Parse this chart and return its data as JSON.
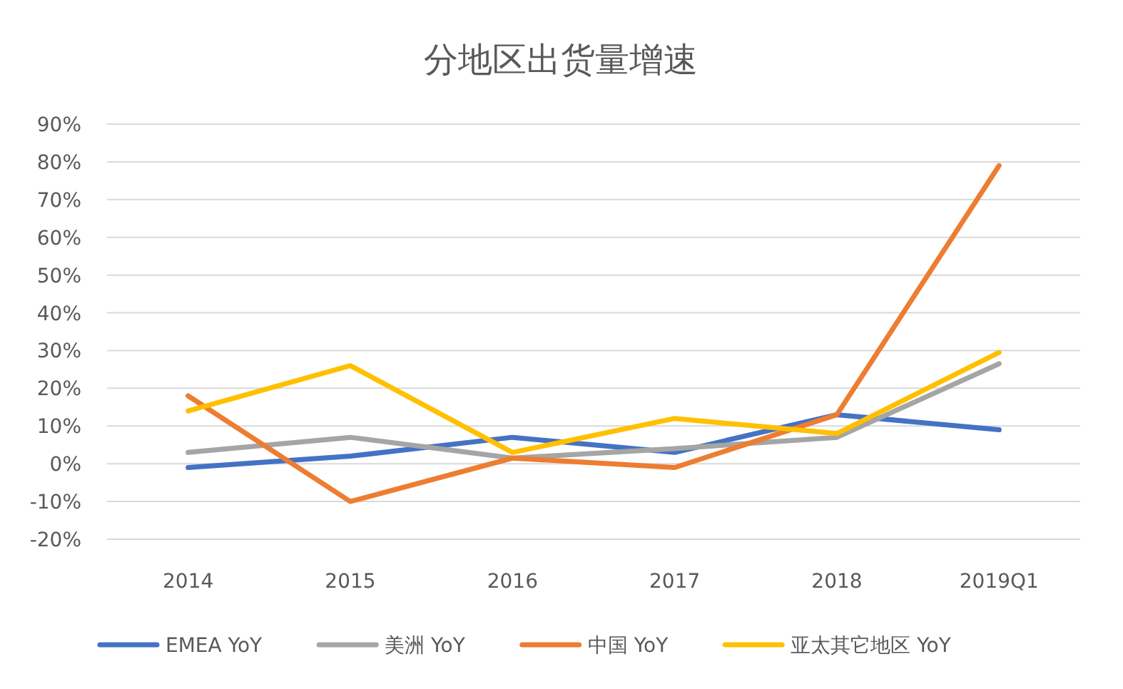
{
  "chart_data": {
    "type": "line",
    "title": "分地区出货量增速",
    "categories": [
      "2014",
      "2015",
      "2016",
      "2017",
      "2018",
      "2019Q1"
    ],
    "series": [
      {
        "name": "EMEA YoY",
        "color": "#4472c4",
        "values": [
          -1,
          2,
          7,
          3,
          13,
          9
        ]
      },
      {
        "name": "美洲 YoY",
        "color": "#a5a5a5",
        "values": [
          3,
          7,
          1.5,
          4,
          7,
          26.5
        ]
      },
      {
        "name": "中国 YoY",
        "color": "#ed7d31",
        "values": [
          18,
          -10,
          1.5,
          -1,
          13,
          79
        ]
      },
      {
        "name": "亚太其它地区 YoY",
        "color": "#ffc000",
        "values": [
          14,
          26,
          3,
          12,
          8,
          29.5
        ]
      }
    ],
    "ylim": [
      -20,
      90
    ],
    "yticks": [
      {
        "value": -20,
        "label": "-20%"
      },
      {
        "value": -10,
        "label": "-10%"
      },
      {
        "value": 0,
        "label": "0%"
      },
      {
        "value": 10,
        "label": "10%"
      },
      {
        "value": 20,
        "label": "20%"
      },
      {
        "value": 30,
        "label": "30%"
      },
      {
        "value": 40,
        "label": "40%"
      },
      {
        "value": 50,
        "label": "50%"
      },
      {
        "value": 60,
        "label": "60%"
      },
      {
        "value": 70,
        "label": "70%"
      },
      {
        "value": 80,
        "label": "80%"
      },
      {
        "value": 90,
        "label": "90%"
      }
    ],
    "grid": "y",
    "legend": "bottom",
    "marker": "none",
    "line_style": "solid"
  }
}
